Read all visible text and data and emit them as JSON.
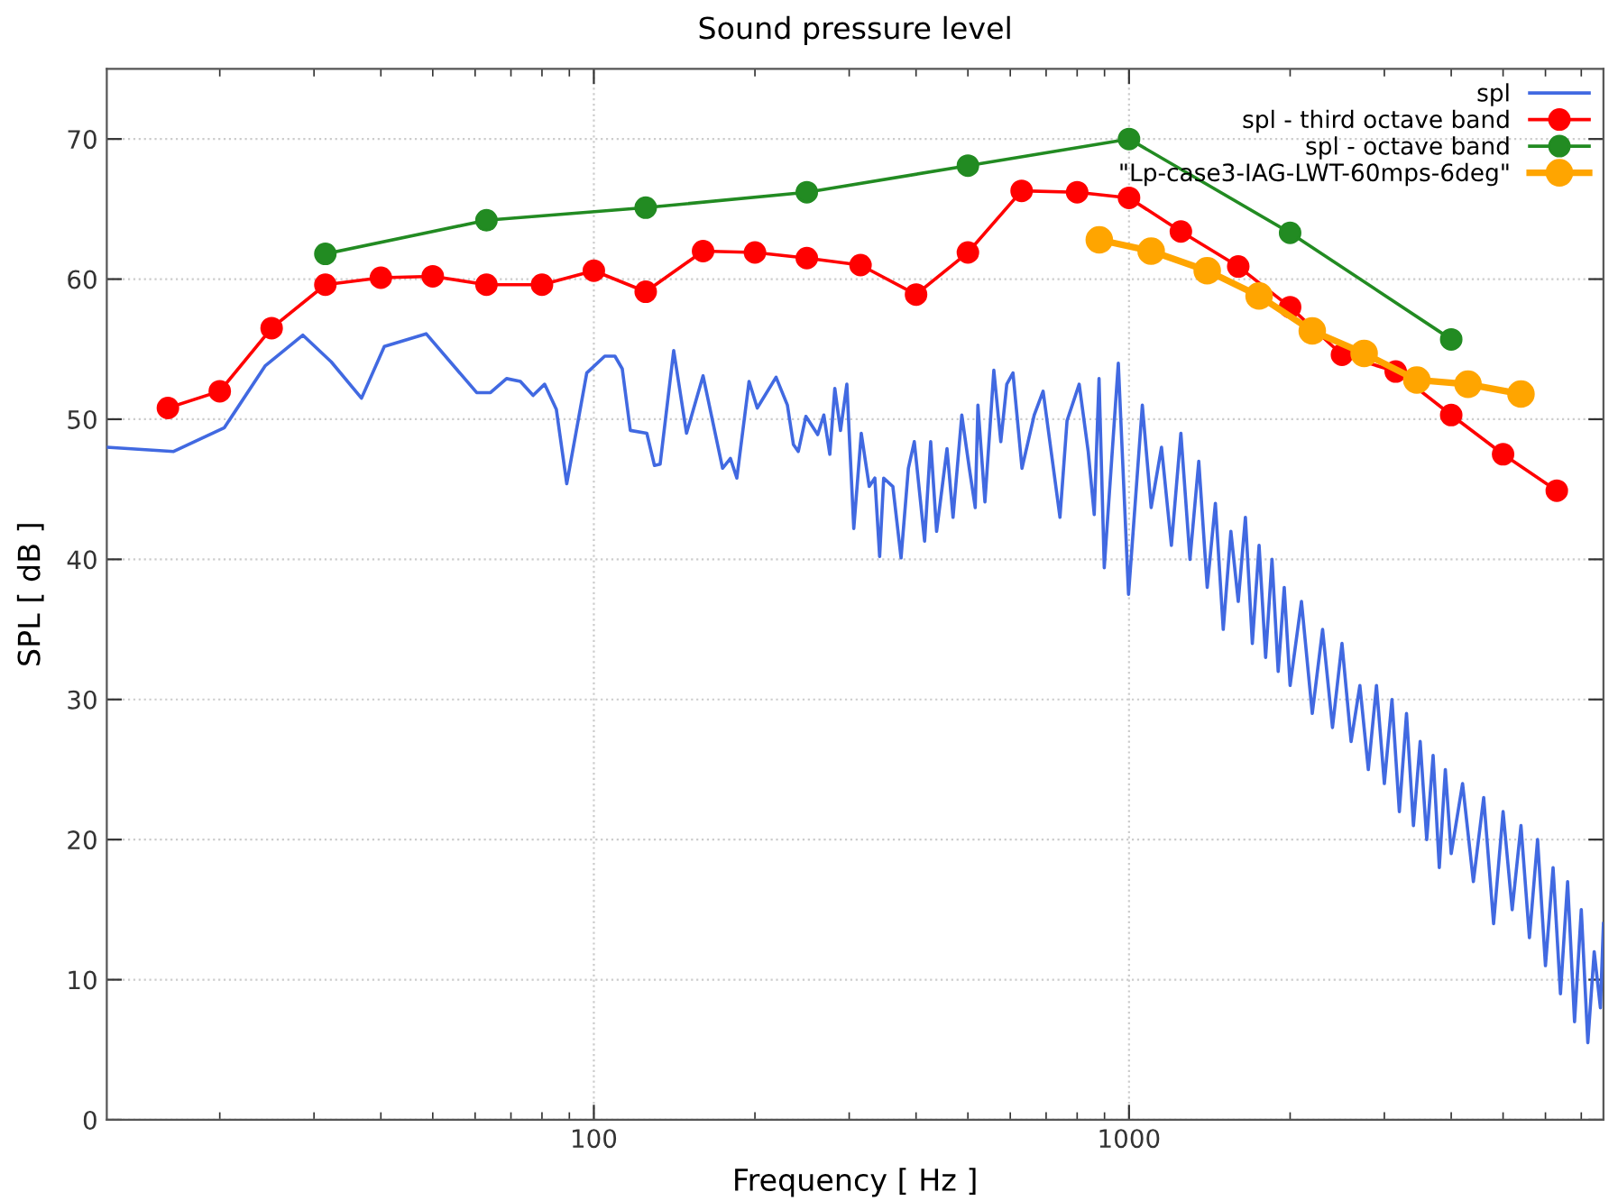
{
  "chart_data": {
    "type": "line",
    "title": "Sound pressure level",
    "xlabel": "Frequency [ Hz ]",
    "ylabel": "SPL [ dB ]",
    "log": "x",
    "xlim": [
      12.3,
      7700
    ],
    "xticks": [
      100,
      1000
    ],
    "ylim": [
      0,
      75
    ],
    "yticks": [
      0,
      10,
      20,
      30,
      40,
      50,
      60,
      70
    ],
    "grid": true,
    "legend": "top right",
    "series": [
      {
        "name": "spl",
        "color": "#4169e1",
        "marker": "none",
        "x": [
          12.3,
          16.4,
          20.4,
          24.3,
          28.6,
          32.3,
          36.8,
          40.6,
          48.6,
          60.4,
          64.1,
          68.7,
          72.9,
          77.0,
          80.9,
          85.1,
          89.0,
          97.0,
          104.8,
          109.5,
          113,
          117,
          125.6,
          129.8,
          133,
          141,
          149,
          160,
          174,
          180,
          185,
          195,
          202,
          219,
          230,
          236,
          241,
          249,
          262,
          269,
          276,
          282,
          289,
          297,
          306,
          316,
          327,
          335,
          342,
          348,
          362,
          375,
          387,
          397,
          415,
          426,
          437,
          457,
          469,
          487,
          503,
          516,
          522,
          538,
          559,
          576,
          591,
          607,
          631,
          665,
          691,
          743,
          766,
          807,
          839,
          861,
          879,
          899,
          955,
          998,
          1059,
          1100,
          1150,
          1200,
          1250,
          1300,
          1350,
          1400,
          1450,
          1500,
          1550,
          1600,
          1650,
          1700,
          1750,
          1800,
          1850,
          1900,
          1950,
          2000,
          2100,
          2200,
          2300,
          2400,
          2500,
          2600,
          2700,
          2800,
          2900,
          3000,
          3100,
          3200,
          3300,
          3400,
          3500,
          3600,
          3700,
          3800,
          3900,
          4000,
          4200,
          4400,
          4600,
          4800,
          5000,
          5200,
          5400,
          5600,
          5800,
          6000,
          6200,
          6400,
          6600,
          6800,
          7000,
          7200,
          7400,
          7600,
          7700
        ],
        "values": [
          48.0,
          47.7,
          49.4,
          53.8,
          56.0,
          54.1,
          51.5,
          55.2,
          56.1,
          51.9,
          51.9,
          52.9,
          52.7,
          51.7,
          52.5,
          50.7,
          45.4,
          53.3,
          54.5,
          54.5,
          53.6,
          49.2,
          49.0,
          46.7,
          46.8,
          54.9,
          49.0,
          53.1,
          46.5,
          47.2,
          45.8,
          52.7,
          50.8,
          53.0,
          51.0,
          48.2,
          47.7,
          50.2,
          48.9,
          50.3,
          47.5,
          52.2,
          49.2,
          52.5,
          42.2,
          49.0,
          45.2,
          45.8,
          40.2,
          45.8,
          45.2,
          40.1,
          46.5,
          48.4,
          41.3,
          48.4,
          42.0,
          47.9,
          43.0,
          50.3,
          46.5,
          43.7,
          51.0,
          44.1,
          53.5,
          48.4,
          52.5,
          53.3,
          46.5,
          50.3,
          52.0,
          43.0,
          49.9,
          52.5,
          47.7,
          43.2,
          52.9,
          39.4,
          54.0,
          37.5,
          51.0,
          43.7,
          48,
          41,
          49,
          40,
          47,
          38,
          44,
          35,
          42,
          37,
          43,
          34,
          41,
          33,
          40,
          32,
          38,
          31,
          37,
          29,
          35,
          28,
          34,
          27,
          31,
          25,
          31,
          24,
          30,
          22,
          29,
          21,
          27,
          20,
          26,
          18,
          25,
          19,
          24,
          17,
          23,
          14,
          22,
          15,
          21,
          13,
          20,
          11,
          18,
          9,
          17,
          7,
          15,
          5.5,
          12,
          8,
          14
        ]
      },
      {
        "name": "spl - third octave band",
        "color": "#ff0000",
        "marker": "circle",
        "x": [
          16,
          20,
          25,
          31.5,
          40,
          50,
          63,
          80,
          100,
          125,
          160,
          200,
          250,
          315,
          400,
          500,
          630,
          800,
          1000,
          1250,
          1600,
          2000,
          2500,
          3150,
          4000,
          5000,
          6300
        ],
        "values": [
          50.8,
          52.0,
          56.5,
          59.6,
          60.1,
          60.2,
          59.6,
          59.6,
          60.6,
          59.1,
          62.0,
          61.9,
          61.5,
          61.0,
          58.9,
          61.9,
          66.3,
          66.2,
          65.8,
          63.4,
          60.9,
          58.0,
          54.6,
          53.4,
          50.3,
          47.5,
          44.9
        ]
      },
      {
        "name": "spl - octave band",
        "color": "#228b22",
        "marker": "circle",
        "x": [
          31.5,
          63,
          125,
          250,
          500,
          1000,
          2000,
          4000
        ],
        "values": [
          61.8,
          64.2,
          65.1,
          66.2,
          68.1,
          70.0,
          63.3,
          55.7
        ]
      },
      {
        "name": "\"Lp-case3-IAG-LWT-60mps-6deg\"",
        "color": "#ffa500",
        "marker": "circle",
        "x": [
          880,
          1100,
          1400,
          1750,
          2200,
          2750,
          3450,
          4300,
          5400
        ],
        "values": [
          62.8,
          62.0,
          60.6,
          58.8,
          56.3,
          54.7,
          52.8,
          52.5,
          51.8
        ]
      }
    ]
  }
}
